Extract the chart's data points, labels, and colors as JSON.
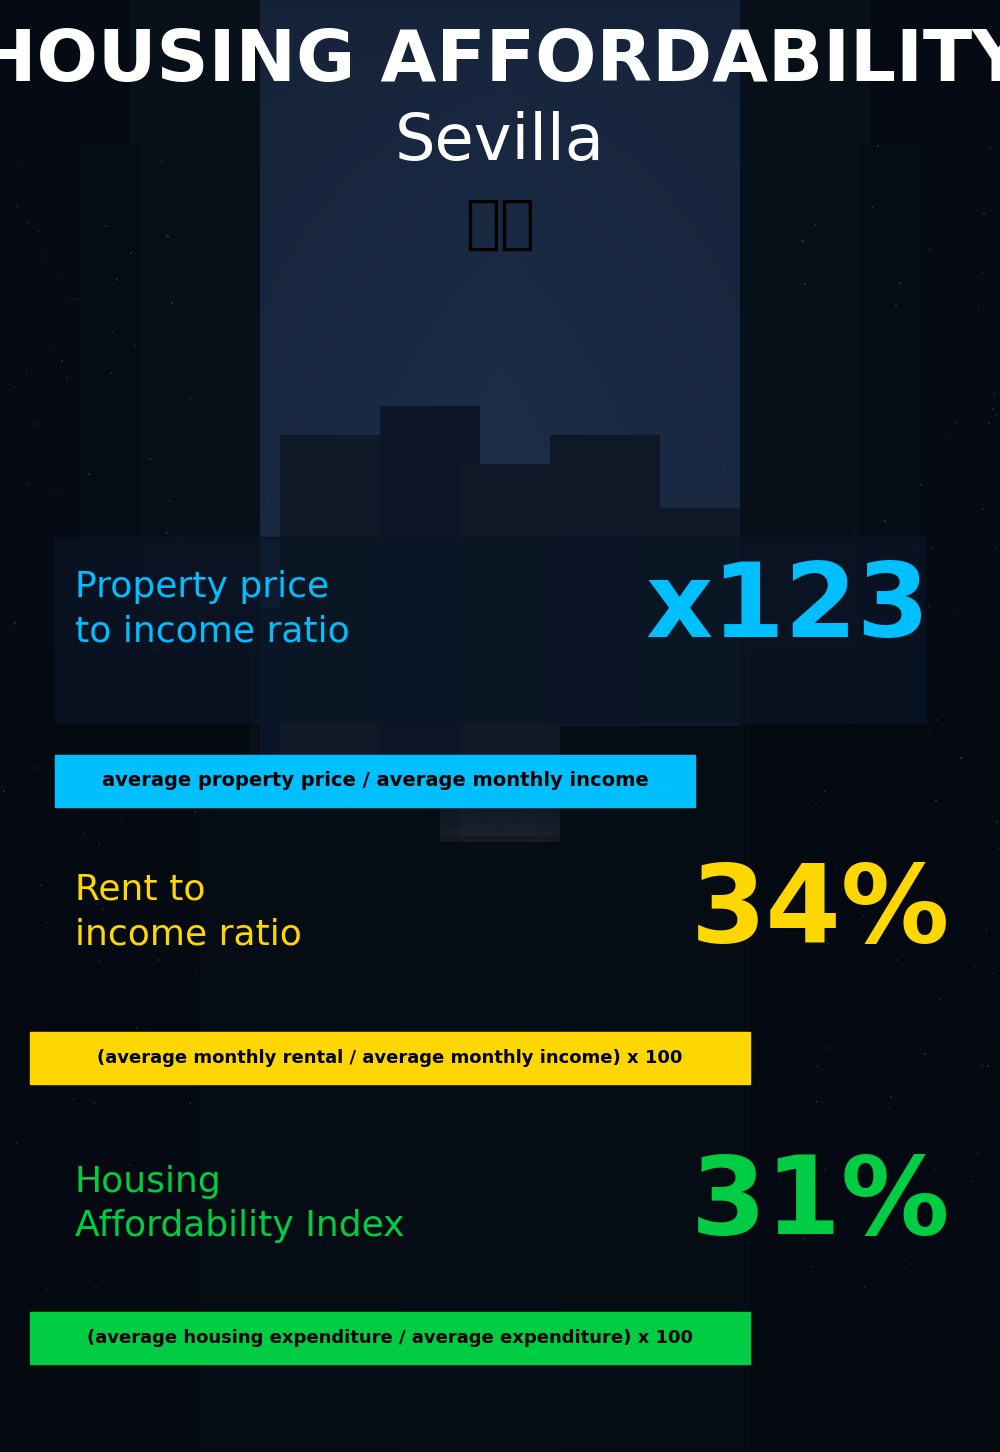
{
  "title_line1": "HOUSING AFFORDABILITY",
  "title_line2": "Sevilla",
  "flag_emoji": "🇪🇸",
  "section1_label": "Property price\nto income ratio",
  "section1_value": "x123",
  "section1_formula": "average property price / average monthly income",
  "section1_label_color": "#00BFFF",
  "section1_value_color": "#00BFFF",
  "section1_banner_color": "#00BFFF",
  "section2_label": "Rent to\nincome ratio",
  "section2_value": "34%",
  "section2_formula": "(average monthly rental / average monthly income) x 100",
  "section2_label_color": "#FFD700",
  "section2_value_color": "#FFD700",
  "section2_banner_color": "#FFD700",
  "section3_label": "Housing\nAffordability Index",
  "section3_value": "31%",
  "section3_formula": "(average housing expenditure / average expenditure) x 100",
  "section3_label_color": "#00CC44",
  "section3_value_color": "#00CC44",
  "section3_banner_color": "#00CC44",
  "title_color": "#FFFFFF",
  "formula_text_color": "#000000",
  "fig_width": 10.0,
  "fig_height": 14.52,
  "bg_sky_top": "#0a1628",
  "bg_sky_mid": "#1a3a5c",
  "bg_sky_center": "#2e6080",
  "bg_bldg_dark": "#070d18",
  "bg_bldg_mid": "#0d1f35",
  "bg_warm_glow": "#8B4513"
}
